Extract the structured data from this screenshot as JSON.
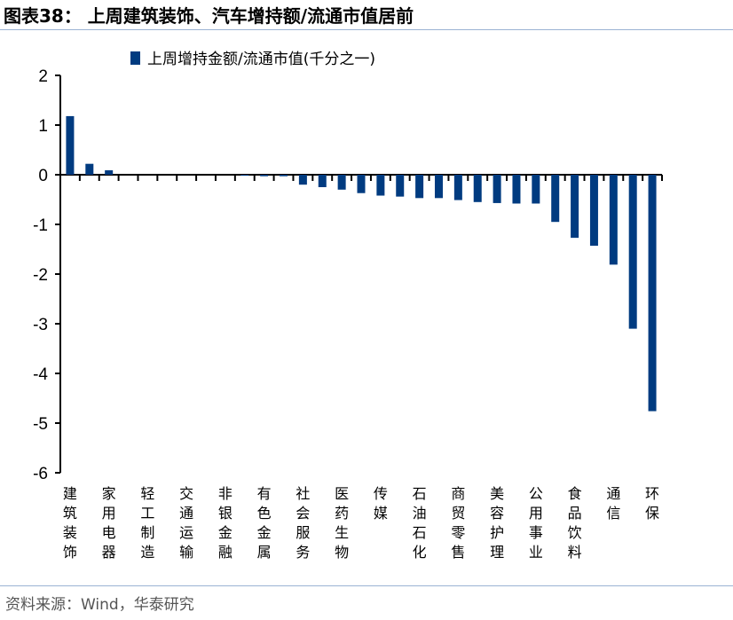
{
  "title": "图表38：  上周建筑装饰、汽车增持额/流通市值居前",
  "source": "资料来源：Wind，华泰研究",
  "chart_data": {
    "type": "bar",
    "title": "",
    "xlabel": "",
    "ylabel": "",
    "ylim": [
      -6,
      2
    ],
    "yticks": [
      "2",
      "1",
      "0",
      "-1",
      "-2",
      "-3",
      "-4",
      "-5",
      "-6"
    ],
    "grid": false,
    "legend_position": "top",
    "color": "#003B80",
    "categories": [
      "建筑装饰",
      "",
      "家用电器",
      "",
      "轻工制造",
      "",
      "交通运输",
      "",
      "非银金融",
      "",
      "有色金属",
      "",
      "社会服务",
      "",
      "医药生物",
      "",
      "传媒",
      "",
      "石油石化",
      "",
      "商贸零售",
      "",
      "美容护理",
      "",
      "公用事业",
      "",
      "食品饮料",
      "",
      "通信",
      "",
      "环保"
    ],
    "series": [
      {
        "name": "上周增持金额/流通市值(千分之一)",
        "values": [
          1.18,
          0.22,
          0.09,
          0,
          0,
          0,
          0,
          0,
          0,
          -0.02,
          -0.03,
          -0.03,
          -0.2,
          -0.25,
          -0.3,
          -0.37,
          -0.42,
          -0.44,
          -0.47,
          -0.47,
          -0.51,
          -0.55,
          -0.57,
          -0.58,
          -0.58,
          -0.95,
          -1.27,
          -1.43,
          -1.81,
          -3.1,
          -4.76
        ]
      }
    ]
  }
}
